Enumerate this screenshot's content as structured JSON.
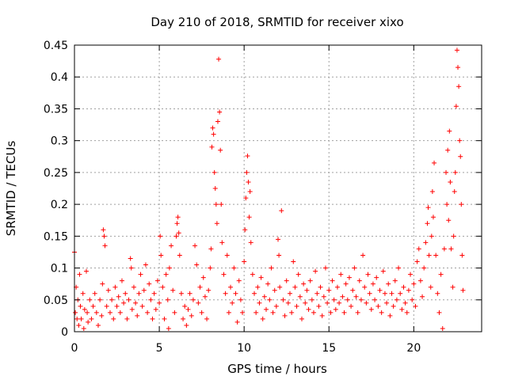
{
  "chart_data": {
    "type": "scatter",
    "title": "Day 210 of 2018, SRMTID for receiver xixo",
    "xlabel": "GPS time / hours",
    "ylabel": "SRMTID / TECUs",
    "xlim": [
      0,
      24
    ],
    "ylim": [
      0,
      0.45
    ],
    "grid": true,
    "marker": "+",
    "color": "#ff0000",
    "xticks": [
      0,
      5,
      10,
      15,
      20
    ],
    "xtick_labels": [
      "0",
      "5",
      "10",
      "15",
      "20"
    ],
    "yticks": [
      0,
      0.05,
      0.1,
      0.15,
      0.2,
      0.25,
      0.3,
      0.35,
      0.4,
      0.45
    ],
    "ytick_labels": [
      "0",
      "0.05",
      "0.1",
      "0.15",
      "0.2",
      "0.25",
      "0.3",
      "0.35",
      "0.4",
      "0.45"
    ],
    "series": [
      {
        "name": "SRMTID",
        "points": [
          [
            0.0,
            0.125
          ],
          [
            0.05,
            0.03
          ],
          [
            0.1,
            0.07
          ],
          [
            0.15,
            0.02
          ],
          [
            0.2,
            0.05
          ],
          [
            0.25,
            0.01
          ],
          [
            0.3,
            0.09
          ],
          [
            0.35,
            0.04
          ],
          [
            0.4,
            0.02
          ],
          [
            0.5,
            0.06
          ],
          [
            0.55,
            0.005
          ],
          [
            0.6,
            0.035
          ],
          [
            0.7,
            0.095
          ],
          [
            0.75,
            0.03
          ],
          [
            0.8,
            0.015
          ],
          [
            0.9,
            0.05
          ],
          [
            1.0,
            0.02
          ],
          [
            1.1,
            0.04
          ],
          [
            1.2,
            0.06
          ],
          [
            1.3,
            0.03
          ],
          [
            1.4,
            0.01
          ],
          [
            1.5,
            0.05
          ],
          [
            1.6,
            0.025
          ],
          [
            1.65,
            0.075
          ],
          [
            1.7,
            0.16
          ],
          [
            1.75,
            0.15
          ],
          [
            1.8,
            0.135
          ],
          [
            1.9,
            0.04
          ],
          [
            2.0,
            0.065
          ],
          [
            2.1,
            0.03
          ],
          [
            2.2,
            0.05
          ],
          [
            2.3,
            0.02
          ],
          [
            2.4,
            0.07
          ],
          [
            2.5,
            0.04
          ],
          [
            2.6,
            0.055
          ],
          [
            2.7,
            0.03
          ],
          [
            2.8,
            0.08
          ],
          [
            2.9,
            0.045
          ],
          [
            3.0,
            0.06
          ],
          [
            3.1,
            0.02
          ],
          [
            3.2,
            0.05
          ],
          [
            3.3,
            0.115
          ],
          [
            3.35,
            0.1
          ],
          [
            3.4,
            0.035
          ],
          [
            3.5,
            0.07
          ],
          [
            3.6,
            0.045
          ],
          [
            3.7,
            0.025
          ],
          [
            3.8,
            0.06
          ],
          [
            3.9,
            0.09
          ],
          [
            4.0,
            0.04
          ],
          [
            4.1,
            0.065
          ],
          [
            4.2,
            0.105
          ],
          [
            4.3,
            0.03
          ],
          [
            4.4,
            0.075
          ],
          [
            4.5,
            0.05
          ],
          [
            4.6,
            0.02
          ],
          [
            4.7,
            0.06
          ],
          [
            4.8,
            0.035
          ],
          [
            4.9,
            0.08
          ],
          [
            5.0,
            0.045
          ],
          [
            5.05,
            0.15
          ],
          [
            5.1,
            0.12
          ],
          [
            5.2,
            0.07
          ],
          [
            5.3,
            0.02
          ],
          [
            5.4,
            0.09
          ],
          [
            5.5,
            0.05
          ],
          [
            5.55,
            0.005
          ],
          [
            5.6,
            0.1
          ],
          [
            5.7,
            0.135
          ],
          [
            5.8,
            0.065
          ],
          [
            5.9,
            0.03
          ],
          [
            6.0,
            0.15
          ],
          [
            6.05,
            0.17
          ],
          [
            6.1,
            0.18
          ],
          [
            6.15,
            0.155
          ],
          [
            6.2,
            0.12
          ],
          [
            6.3,
            0.06
          ],
          [
            6.4,
            0.02
          ],
          [
            6.5,
            0.04
          ],
          [
            6.6,
            0.01
          ],
          [
            6.7,
            0.035
          ],
          [
            6.8,
            0.06
          ],
          [
            6.9,
            0.025
          ],
          [
            7.0,
            0.05
          ],
          [
            7.1,
            0.135
          ],
          [
            7.2,
            0.105
          ],
          [
            7.3,
            0.045
          ],
          [
            7.4,
            0.07
          ],
          [
            7.5,
            0.03
          ],
          [
            7.6,
            0.085
          ],
          [
            7.7,
            0.055
          ],
          [
            7.8,
            0.02
          ],
          [
            7.9,
            0.065
          ],
          [
            8.0,
            0.1
          ],
          [
            8.05,
            0.13
          ],
          [
            8.1,
            0.29
          ],
          [
            8.15,
            0.32
          ],
          [
            8.2,
            0.31
          ],
          [
            8.25,
            0.25
          ],
          [
            8.3,
            0.225
          ],
          [
            8.35,
            0.2
          ],
          [
            8.4,
            0.17
          ],
          [
            8.45,
            0.33
          ],
          [
            8.5,
            0.428
          ],
          [
            8.55,
            0.345
          ],
          [
            8.6,
            0.285
          ],
          [
            8.65,
            0.2
          ],
          [
            8.7,
            0.14
          ],
          [
            8.8,
            0.09
          ],
          [
            8.9,
            0.06
          ],
          [
            9.0,
            0.12
          ],
          [
            9.1,
            0.03
          ],
          [
            9.2,
            0.07
          ],
          [
            9.3,
            0.045
          ],
          [
            9.4,
            0.1
          ],
          [
            9.5,
            0.06
          ],
          [
            9.6,
            0.015
          ],
          [
            9.7,
            0.08
          ],
          [
            9.8,
            0.05
          ],
          [
            9.9,
            0.03
          ],
          [
            10.0,
            0.11
          ],
          [
            10.05,
            0.16
          ],
          [
            10.1,
            0.21
          ],
          [
            10.15,
            0.25
          ],
          [
            10.2,
            0.276
          ],
          [
            10.25,
            0.235
          ],
          [
            10.3,
            0.18
          ],
          [
            10.35,
            0.22
          ],
          [
            10.4,
            0.14
          ],
          [
            10.5,
            0.09
          ],
          [
            10.6,
            0.06
          ],
          [
            10.7,
            0.03
          ],
          [
            10.8,
            0.07
          ],
          [
            10.9,
            0.045
          ],
          [
            11.0,
            0.085
          ],
          [
            11.1,
            0.02
          ],
          [
            11.2,
            0.055
          ],
          [
            11.3,
            0.035
          ],
          [
            11.4,
            0.075
          ],
          [
            11.5,
            0.05
          ],
          [
            11.6,
            0.1
          ],
          [
            11.7,
            0.03
          ],
          [
            11.8,
            0.065
          ],
          [
            11.9,
            0.04
          ],
          [
            12.0,
            0.145
          ],
          [
            12.05,
            0.12
          ],
          [
            12.1,
            0.07
          ],
          [
            12.2,
            0.19
          ],
          [
            12.3,
            0.05
          ],
          [
            12.4,
            0.025
          ],
          [
            12.5,
            0.08
          ],
          [
            12.6,
            0.045
          ],
          [
            12.7,
            0.06
          ],
          [
            12.8,
            0.03
          ],
          [
            12.9,
            0.11
          ],
          [
            13.0,
            0.07
          ],
          [
            13.1,
            0.04
          ],
          [
            13.2,
            0.09
          ],
          [
            13.3,
            0.055
          ],
          [
            13.4,
            0.02
          ],
          [
            13.5,
            0.075
          ],
          [
            13.6,
            0.045
          ],
          [
            13.7,
            0.065
          ],
          [
            13.8,
            0.035
          ],
          [
            13.9,
            0.08
          ],
          [
            14.0,
            0.05
          ],
          [
            14.1,
            0.03
          ],
          [
            14.2,
            0.095
          ],
          [
            14.3,
            0.06
          ],
          [
            14.4,
            0.04
          ],
          [
            14.5,
            0.07
          ],
          [
            14.6,
            0.025
          ],
          [
            14.7,
            0.055
          ],
          [
            14.8,
            0.1
          ],
          [
            14.9,
            0.045
          ],
          [
            15.0,
            0.065
          ],
          [
            15.1,
            0.03
          ],
          [
            15.2,
            0.08
          ],
          [
            15.3,
            0.05
          ],
          [
            15.4,
            0.035
          ],
          [
            15.5,
            0.07
          ],
          [
            15.6,
            0.045
          ],
          [
            15.7,
            0.09
          ],
          [
            15.8,
            0.055
          ],
          [
            15.9,
            0.03
          ],
          [
            16.0,
            0.075
          ],
          [
            16.1,
            0.05
          ],
          [
            16.2,
            0.085
          ],
          [
            16.3,
            0.04
          ],
          [
            16.4,
            0.065
          ],
          [
            16.5,
            0.1
          ],
          [
            16.6,
            0.055
          ],
          [
            16.7,
            0.03
          ],
          [
            16.8,
            0.08
          ],
          [
            16.9,
            0.05
          ],
          [
            17.0,
            0.12
          ],
          [
            17.1,
            0.07
          ],
          [
            17.2,
            0.045
          ],
          [
            17.3,
            0.09
          ],
          [
            17.4,
            0.06
          ],
          [
            17.5,
            0.035
          ],
          [
            17.6,
            0.075
          ],
          [
            17.7,
            0.05
          ],
          [
            17.8,
            0.085
          ],
          [
            17.9,
            0.04
          ],
          [
            18.0,
            0.065
          ],
          [
            18.1,
            0.03
          ],
          [
            18.2,
            0.095
          ],
          [
            18.3,
            0.06
          ],
          [
            18.4,
            0.045
          ],
          [
            18.5,
            0.075
          ],
          [
            18.6,
            0.025
          ],
          [
            18.7,
            0.06
          ],
          [
            18.8,
            0.04
          ],
          [
            18.9,
            0.08
          ],
          [
            19.0,
            0.05
          ],
          [
            19.1,
            0.1
          ],
          [
            19.2,
            0.06
          ],
          [
            19.3,
            0.035
          ],
          [
            19.4,
            0.07
          ],
          [
            19.5,
            0.045
          ],
          [
            19.6,
            0.03
          ],
          [
            19.7,
            0.065
          ],
          [
            19.8,
            0.09
          ],
          [
            19.9,
            0.05
          ],
          [
            20.0,
            0.075
          ],
          [
            20.1,
            0.04
          ],
          [
            20.2,
            0.11
          ],
          [
            20.3,
            0.13
          ],
          [
            20.4,
            0.08
          ],
          [
            20.5,
            0.055
          ],
          [
            20.6,
            0.1
          ],
          [
            20.7,
            0.14
          ],
          [
            20.8,
            0.17
          ],
          [
            20.85,
            0.195
          ],
          [
            20.9,
            0.12
          ],
          [
            21.0,
            0.07
          ],
          [
            21.05,
            0.15
          ],
          [
            21.1,
            0.22
          ],
          [
            21.15,
            0.18
          ],
          [
            21.2,
            0.265
          ],
          [
            21.3,
            0.12
          ],
          [
            21.4,
            0.06
          ],
          [
            21.5,
            0.03
          ],
          [
            21.6,
            0.09
          ],
          [
            21.7,
            0.005
          ],
          [
            21.8,
            0.13
          ],
          [
            21.9,
            0.25
          ],
          [
            21.95,
            0.2
          ],
          [
            22.0,
            0.285
          ],
          [
            22.05,
            0.175
          ],
          [
            22.1,
            0.315
          ],
          [
            22.15,
            0.235
          ],
          [
            22.2,
            0.13
          ],
          [
            22.3,
            0.07
          ],
          [
            22.35,
            0.15
          ],
          [
            22.4,
            0.22
          ],
          [
            22.45,
            0.25
          ],
          [
            22.5,
            0.354
          ],
          [
            22.55,
            0.442
          ],
          [
            22.6,
            0.415
          ],
          [
            22.65,
            0.385
          ],
          [
            22.7,
            0.3
          ],
          [
            22.75,
            0.275
          ],
          [
            22.8,
            0.2
          ],
          [
            22.85,
            0.12
          ],
          [
            22.9,
            0.065
          ]
        ]
      }
    ]
  }
}
